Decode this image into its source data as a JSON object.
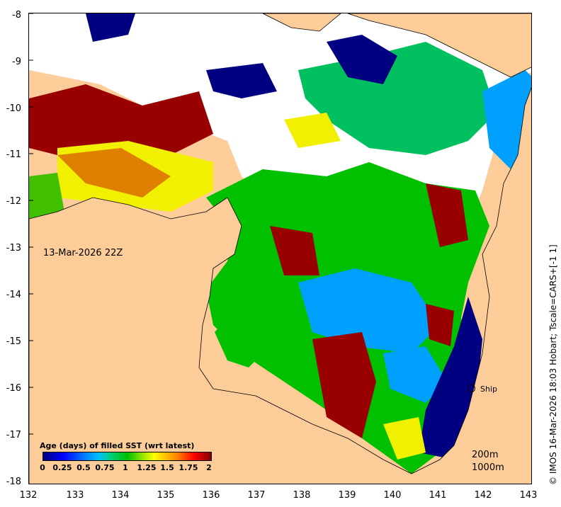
{
  "map": {
    "date_label": "13-Mar-2026 22Z",
    "ship_label": "Ship",
    "depth_contours": [
      "200m",
      "1000m"
    ],
    "credit": "© IMOS 16-Mar-2026 18:03 Hobart; Tscale=CARS+[-1 1]",
    "x_ticks": [
      "132",
      "133",
      "134",
      "135",
      "136",
      "137",
      "138",
      "139",
      "140",
      "141",
      "142",
      "143"
    ],
    "y_ticks": [
      "-8",
      "-9",
      "-10",
      "-11",
      "-12",
      "-13",
      "-14",
      "-15",
      "-16",
      "-17",
      "-18"
    ],
    "colorbar": {
      "title": "Age (days) of filled SST (wrt latest)",
      "ticks": [
        "0",
        "0.25",
        "0.5",
        "0.75",
        "1",
        "1.25",
        "1.5",
        "1.75",
        "2"
      ]
    },
    "colors": {
      "land": "#fccc99",
      "no_data": "#ffffff",
      "age_0": "#000080",
      "age_0_5": "#00a0ff",
      "age_1": "#00c000",
      "age_1_5": "#ffff00",
      "age_2": "#990000"
    }
  }
}
